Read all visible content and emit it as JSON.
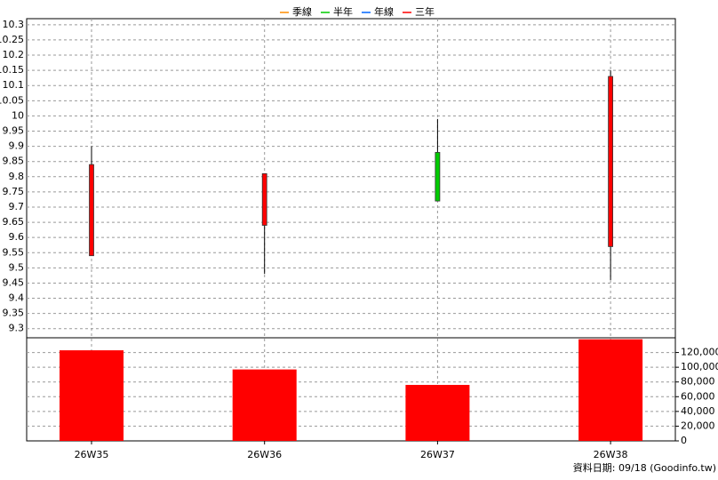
{
  "chart_data": {
    "type": "candlestick",
    "legend": [
      {
        "name": "季線",
        "color": "#ff8c00"
      },
      {
        "name": "半年",
        "color": "#00cc00"
      },
      {
        "name": "年線",
        "color": "#0066ff"
      },
      {
        "name": "三年",
        "color": "#ff0000"
      }
    ],
    "categories": [
      "26W35",
      "26W36",
      "26W37",
      "26W38"
    ],
    "open": [
      9.54,
      9.64,
      9.88,
      9.57
    ],
    "high": [
      9.9,
      9.81,
      9.99,
      10.15
    ],
    "low": [
      9.54,
      9.48,
      9.72,
      9.46
    ],
    "close": [
      9.84,
      9.81,
      9.72,
      10.13
    ],
    "up_color": "#ff0000",
    "down_color": "#00cc00",
    "ylim": [
      9.27,
      10.32
    ],
    "yticks": [
      9.3,
      9.35,
      9.4,
      9.45,
      9.5,
      9.55,
      9.6,
      9.65,
      9.7,
      9.75,
      9.8,
      9.85,
      9.9,
      9.95,
      10,
      10.05,
      10.1,
      10.15,
      10.2,
      10.25,
      10.3
    ],
    "volume": {
      "values": [
        123000,
        97000,
        76000,
        138000
      ],
      "color": "#ff0000",
      "ylim": [
        0,
        140000
      ],
      "yticks": [
        0,
        {
          "value": 20000,
          "label": "20,000"
        },
        {
          "value": 40000,
          "label": "40,000"
        },
        {
          "value": 60000,
          "label": "60,000"
        },
        {
          "value": 80000,
          "label": "80,000"
        },
        {
          "value": 100000,
          "label": "100,000"
        },
        {
          "value": 120000,
          "label": "120,000"
        }
      ]
    },
    "grid": true,
    "footer": "資料日期: 09/18  (Goodinfo.tw)"
  }
}
